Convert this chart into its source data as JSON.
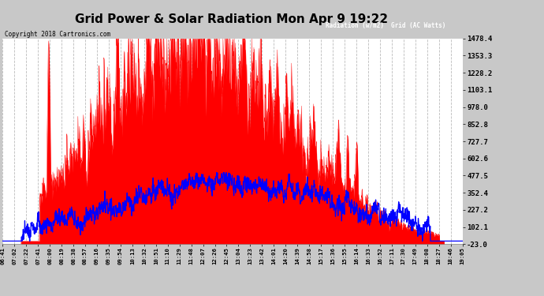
{
  "title": "Grid Power & Solar Radiation Mon Apr 9 19:22",
  "copyright": "Copyright 2018 Cartronics.com",
  "legend_labels": [
    "Radiation (w/m2)",
    "Grid (AC Watts)"
  ],
  "right_yticks": [
    -23.0,
    102.1,
    227.2,
    352.4,
    477.5,
    602.6,
    727.7,
    852.8,
    978.0,
    1103.1,
    1228.2,
    1353.3,
    1478.4
  ],
  "ymin": -23.0,
  "ymax": 1478.4,
  "xtick_labels": [
    "06:41",
    "07:02",
    "07:22",
    "07:41",
    "08:00",
    "08:19",
    "08:38",
    "08:57",
    "09:16",
    "09:35",
    "09:54",
    "10:13",
    "10:32",
    "10:51",
    "11:10",
    "11:29",
    "11:48",
    "12:07",
    "12:26",
    "12:45",
    "13:04",
    "13:23",
    "13:42",
    "14:01",
    "14:20",
    "14:39",
    "14:58",
    "15:17",
    "15:36",
    "15:55",
    "16:14",
    "16:33",
    "16:52",
    "17:11",
    "17:30",
    "17:49",
    "18:08",
    "18:27",
    "18:46",
    "19:05"
  ],
  "solar_color": "#0000ff",
  "grid_power_color": "#ff0000",
  "plot_bg_color": "#ffffff",
  "outer_bg": "#c8c8c8",
  "grid_line_color": "#bbbbbb",
  "title_fontsize": 11,
  "legend_blue_bg": "#0000cc",
  "legend_red_bg": "#cc0000"
}
